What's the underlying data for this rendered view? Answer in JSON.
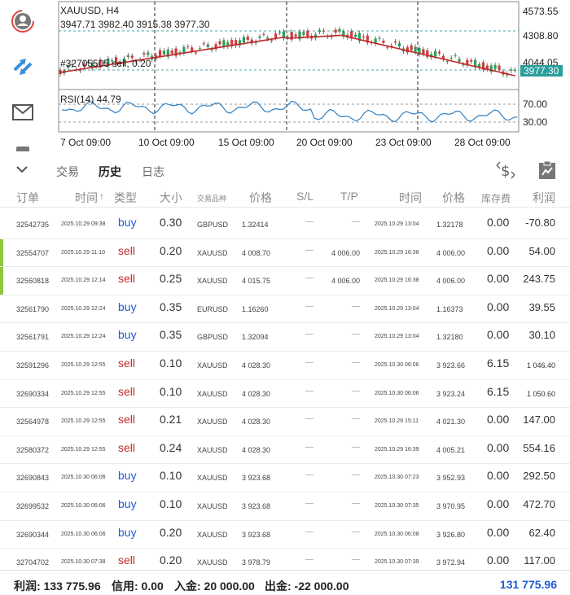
{
  "chart": {
    "symbol_tf": "XAUUSD, H4",
    "ohlc": "3947.71 3982.40 3915.38 3977.30",
    "order_label": "#32705505 sell, 0.20",
    "price_tag": "3977.30",
    "price_levels": [
      "4573.55",
      "4308.80",
      "4044.05"
    ],
    "rsi_label": "RSI(14) 44.79",
    "rsi_levels": [
      "70.00",
      "30.00"
    ],
    "dates": [
      "7 Oct 09:00",
      "10 Oct 09:00",
      "15 Oct 09:00",
      "20 Oct 09:00",
      "23 Oct 09:00",
      "28 Oct 09:00"
    ]
  },
  "tabs": {
    "trade": "交易",
    "history": "历史",
    "journal": "日志"
  },
  "headers": {
    "order": "订单",
    "time": "时间",
    "type": "类型",
    "volume": "大小",
    "symbol": "交易品种",
    "price": "价格",
    "sl": "S/L",
    "tp": "T/P",
    "close_time": "时间",
    "close_price": "价格",
    "swap": "库存费",
    "profit": "利润"
  },
  "rows": [
    {
      "order": "32542735",
      "open_time": "2025.10.29 09:38",
      "type": "buy",
      "volume": "0.30",
      "symbol": "GBPUSD",
      "price": "1.32414",
      "sl": "—",
      "tp": "—",
      "close_time": "2025.10.29 13:04",
      "close_price": "1.32178",
      "swap": "0.00",
      "profit": "-70.80"
    },
    {
      "order": "32554707",
      "open_time": "2025.10.29 11:10",
      "type": "sell",
      "volume": "0.20",
      "symbol": "XAUUSD",
      "price": "4 008.70",
      "sl": "—",
      "tp": "4 006.00",
      "close_time": "2025.10.29 16:38",
      "close_price": "4 006.00",
      "swap": "0.00",
      "profit": "54.00"
    },
    {
      "order": "32560818",
      "open_time": "2025.10.29 12:14",
      "type": "sell",
      "volume": "0.25",
      "symbol": "XAUUSD",
      "price": "4 015.75",
      "sl": "—",
      "tp": "4 006.00",
      "close_time": "2025.10.29 16:38",
      "close_price": "4 006.00",
      "swap": "0.00",
      "profit": "243.75"
    },
    {
      "order": "32561790",
      "open_time": "2025.10.29 12:24",
      "type": "buy",
      "volume": "0.35",
      "symbol": "EURUSD",
      "price": "1.16260",
      "sl": "—",
      "tp": "—",
      "close_time": "2025.10.29 13:04",
      "close_price": "1.16373",
      "swap": "0.00",
      "profit": "39.55"
    },
    {
      "order": "32561791",
      "open_time": "2025.10.29 12:24",
      "type": "buy",
      "volume": "0.35",
      "symbol": "GBPUSD",
      "price": "1.32094",
      "sl": "—",
      "tp": "—",
      "close_time": "2025.10.29 13:04",
      "close_price": "1.32180",
      "swap": "0.00",
      "profit": "30.10"
    },
    {
      "order": "32591296",
      "open_time": "2025.10.29 12:55",
      "type": "sell",
      "volume": "0.10",
      "symbol": "XAUUSD",
      "price": "4 028.30",
      "sl": "—",
      "tp": "—",
      "close_time": "2025.10.30 06:06",
      "close_price": "3 923.66",
      "swap": "6.15",
      "profit": "1 046.40"
    },
    {
      "order": "32690334",
      "open_time": "2025.10.29 12:55",
      "type": "sell",
      "volume": "0.10",
      "symbol": "XAUUSD",
      "price": "4 028.30",
      "sl": "—",
      "tp": "—",
      "close_time": "2025.10.30 06:06",
      "close_price": "3 923.24",
      "swap": "6.15",
      "profit": "1 050.60"
    },
    {
      "order": "32564978",
      "open_time": "2025.10.29 12:55",
      "type": "sell",
      "volume": "0.21",
      "symbol": "XAUUSD",
      "price": "4 028.30",
      "sl": "—",
      "tp": "—",
      "close_time": "2025.10.29 15:11",
      "close_price": "4 021.30",
      "swap": "0.00",
      "profit": "147.00"
    },
    {
      "order": "32580372",
      "open_time": "2025.10.29 12:55",
      "type": "sell",
      "volume": "0.24",
      "symbol": "XAUUSD",
      "price": "4 028.30",
      "sl": "—",
      "tp": "—",
      "close_time": "2025.10.29 16:39",
      "close_price": "4 005.21",
      "swap": "0.00",
      "profit": "554.16"
    },
    {
      "order": "32690843",
      "open_time": "2025.10.30 06:06",
      "type": "buy",
      "volume": "0.10",
      "symbol": "XAUUSD",
      "price": "3 923.68",
      "sl": "—",
      "tp": "—",
      "close_time": "2025.10.30 07:23",
      "close_price": "3 952.93",
      "swap": "0.00",
      "profit": "292.50"
    },
    {
      "order": "32699532",
      "open_time": "2025.10.30 06:06",
      "type": "buy",
      "volume": "0.10",
      "symbol": "XAUUSD",
      "price": "3 923.68",
      "sl": "—",
      "tp": "—",
      "close_time": "2025.10.30 07:35",
      "close_price": "3 970.95",
      "swap": "0.00",
      "profit": "472.70"
    },
    {
      "order": "32690344",
      "open_time": "2025.10.30 06:06",
      "type": "buy",
      "volume": "0.20",
      "symbol": "XAUUSD",
      "price": "3 923.68",
      "sl": "—",
      "tp": "—",
      "close_time": "2025.10.30 06:08",
      "close_price": "3 926.80",
      "swap": "0.00",
      "profit": "62.40"
    },
    {
      "order": "32704702",
      "open_time": "2025.10.30 07:38",
      "type": "sell",
      "volume": "0.20",
      "symbol": "XAUUSD",
      "price": "3 978.79",
      "sl": "—",
      "tp": "—",
      "close_time": "2025.10.30 07:39",
      "close_price": "3 972.94",
      "swap": "0.00",
      "profit": "117.00"
    }
  ],
  "footer": {
    "profit": "利润: 133 775.96",
    "credit": "信用: 0.00",
    "deposit": "入金: 20 000.00",
    "withdrawal": "出金: -22 000.00",
    "total": "131 775.96"
  },
  "colors": {
    "buy": "#1e5bd6",
    "sell": "#c42b2b",
    "accent": "#1e5bd6",
    "ma": "#c0282c",
    "rsi": "#2f7fc1",
    "bid": "#2a9d9d"
  }
}
